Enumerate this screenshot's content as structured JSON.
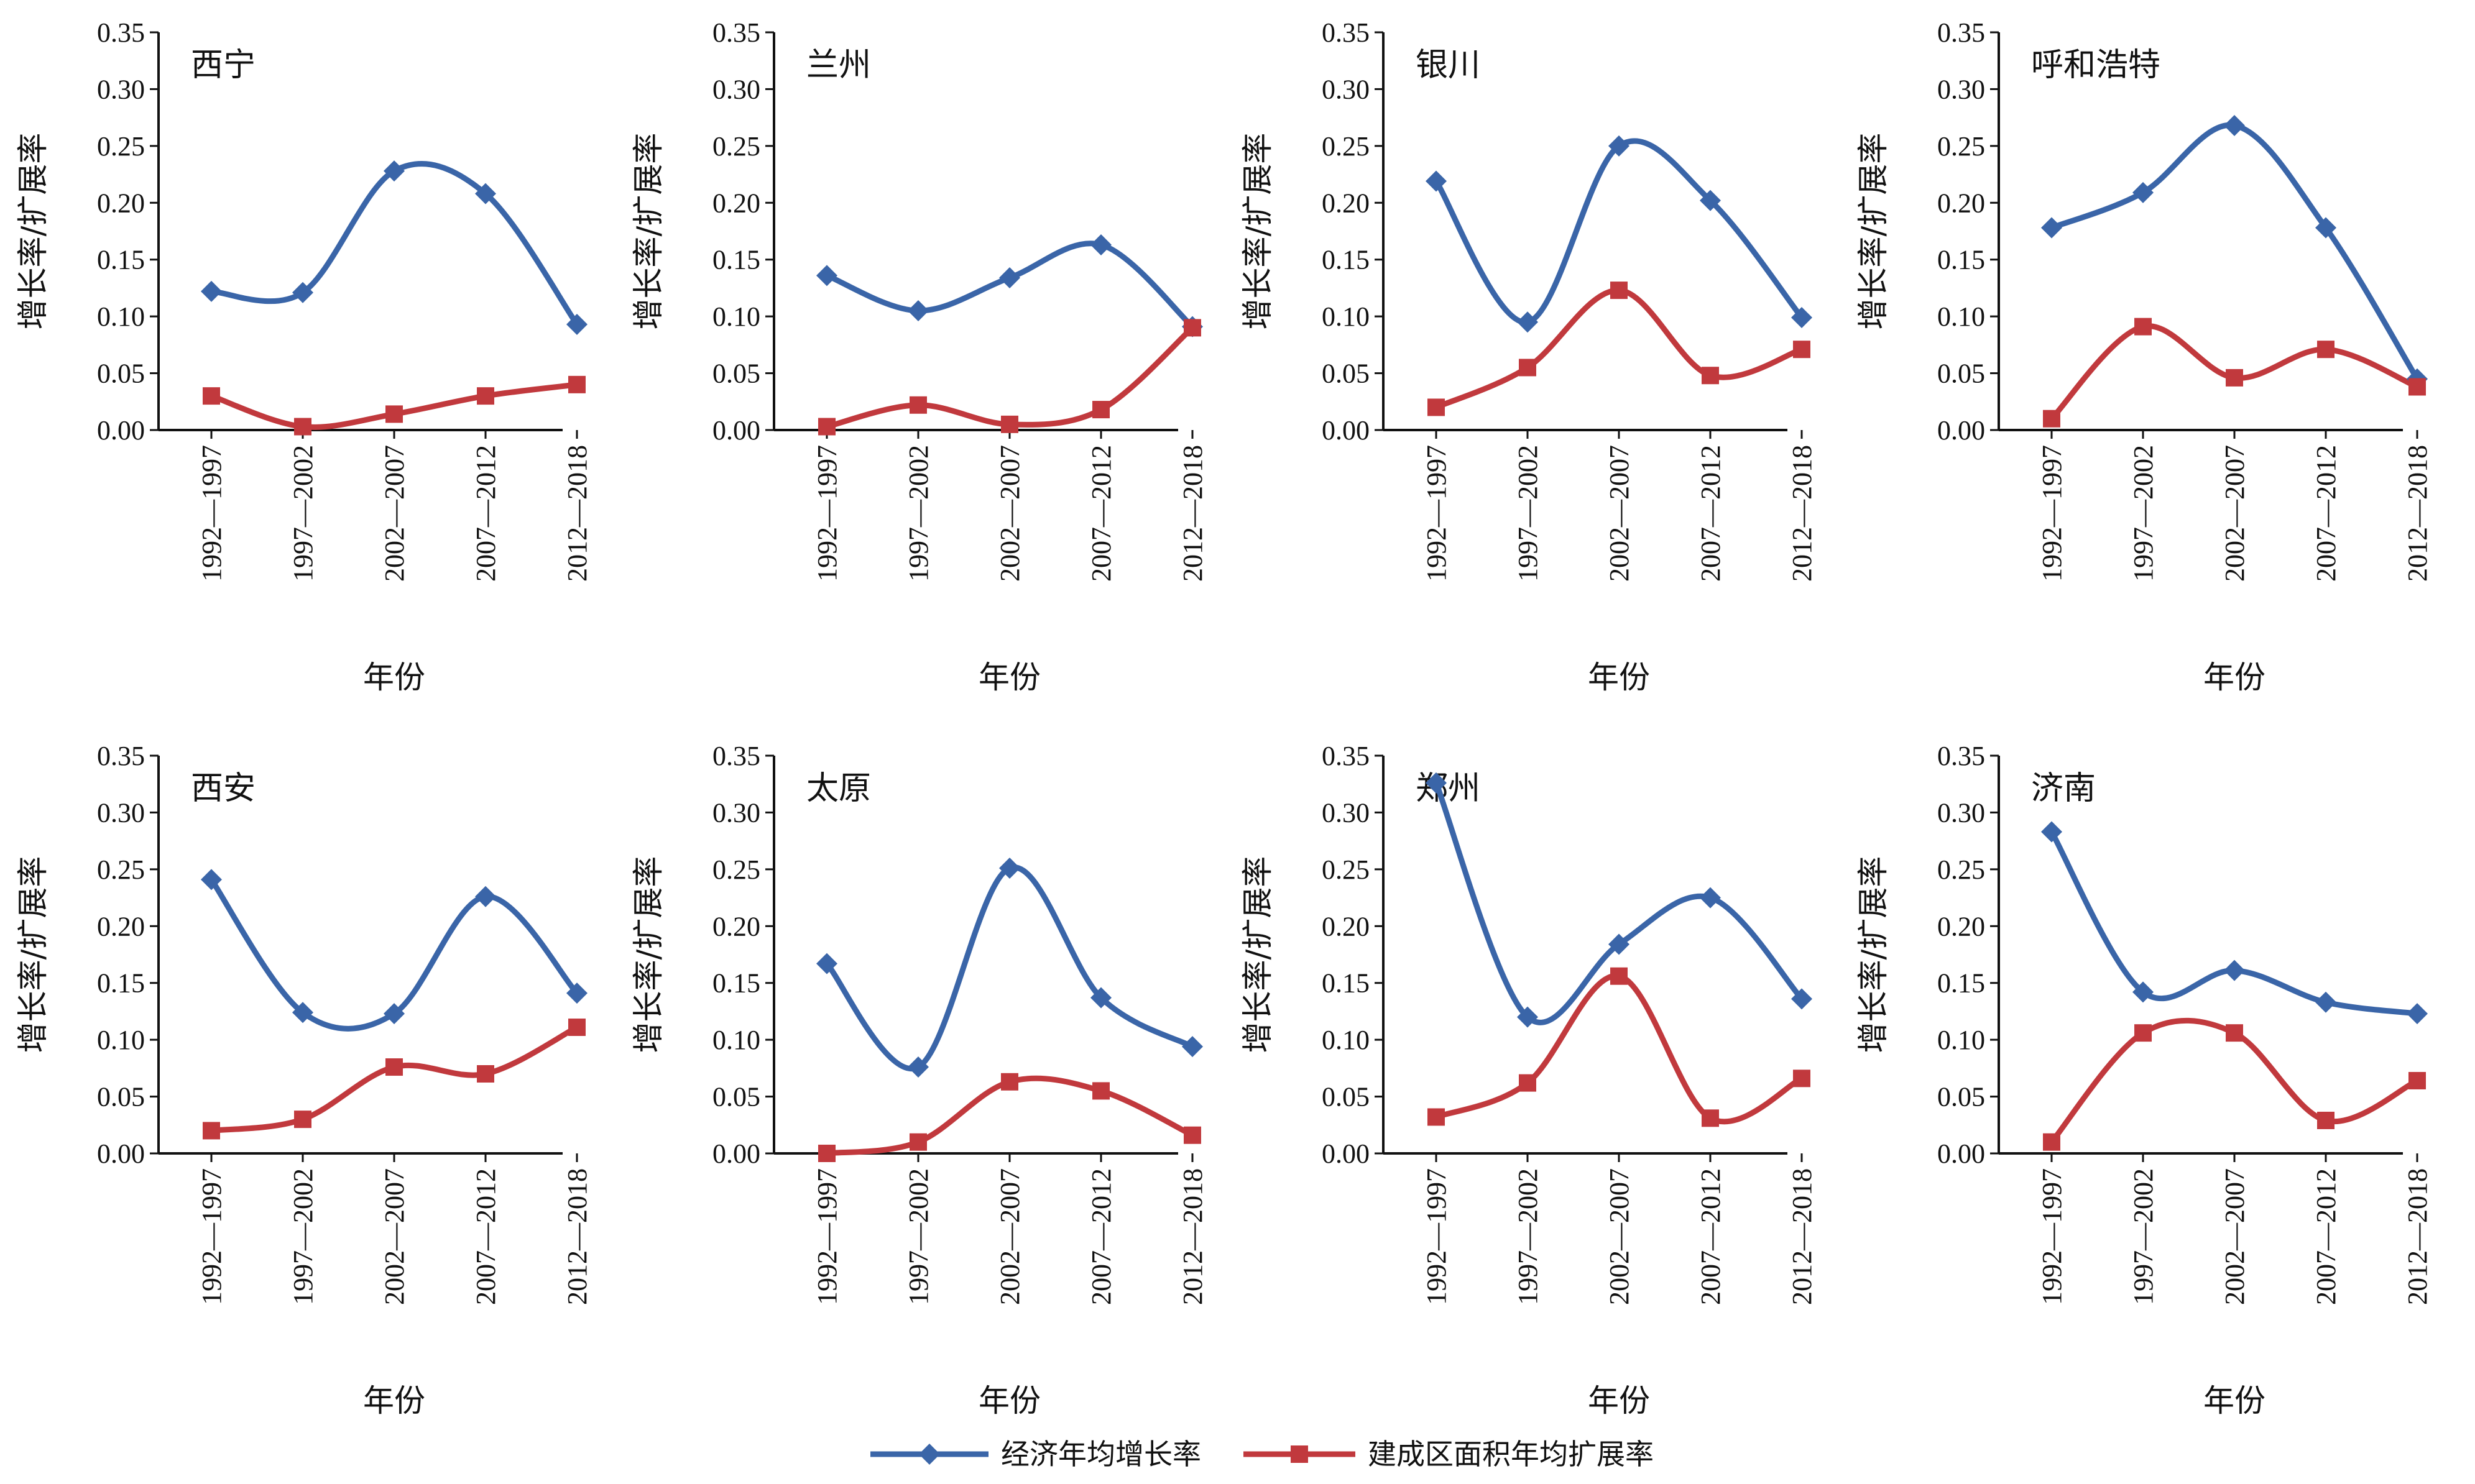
{
  "chart_data": {
    "type": "line",
    "categories": [
      "1992—1997",
      "1997—2002",
      "2002—2007",
      "2007—2012",
      "2012—2018"
    ],
    "xlabel": "年份",
    "ylabel": "增长率/扩展率",
    "ylim": [
      0,
      0.35
    ],
    "yticks": [
      "0.00",
      "0.05",
      "0.10",
      "0.15",
      "0.20",
      "0.25",
      "0.30",
      "0.35"
    ],
    "grid": false,
    "legend_position": "bottom-center",
    "series_meta": [
      {
        "name": "经济年均增长率",
        "color": "#3a65a8",
        "marker": "diamond"
      },
      {
        "name": "建成区面积年均扩展率",
        "color": "#c1393d",
        "marker": "square"
      }
    ],
    "panels": [
      {
        "title": "西宁",
        "economic": [
          0.122,
          0.121,
          0.228,
          0.208,
          0.093
        ],
        "expansion": [
          0.03,
          0.003,
          0.014,
          0.03,
          0.04
        ]
      },
      {
        "title": "兰州",
        "economic": [
          0.136,
          0.105,
          0.134,
          0.163,
          0.091
        ],
        "expansion": [
          0.003,
          0.022,
          0.005,
          0.018,
          0.09
        ]
      },
      {
        "title": "银川",
        "economic": [
          0.219,
          0.095,
          0.25,
          0.202,
          0.099
        ],
        "expansion": [
          0.02,
          0.055,
          0.123,
          0.048,
          0.071
        ]
      },
      {
        "title": "呼和浩特",
        "economic": [
          0.178,
          0.209,
          0.268,
          0.178,
          0.045
        ],
        "expansion": [
          0.01,
          0.091,
          0.046,
          0.071,
          0.038
        ]
      },
      {
        "title": "西安",
        "economic": [
          0.241,
          0.124,
          0.123,
          0.226,
          0.141
        ],
        "expansion": [
          0.02,
          0.03,
          0.076,
          0.07,
          0.111
        ]
      },
      {
        "title": "太原",
        "economic": [
          0.167,
          0.076,
          0.251,
          0.137,
          0.094
        ],
        "expansion": [
          0.0,
          0.01,
          0.063,
          0.055,
          0.016
        ]
      },
      {
        "title": "郑州",
        "economic": [
          0.326,
          0.12,
          0.184,
          0.225,
          0.136
        ],
        "expansion": [
          0.032,
          0.062,
          0.156,
          0.031,
          0.066
        ]
      },
      {
        "title": "济南",
        "economic": [
          0.283,
          0.142,
          0.161,
          0.133,
          0.123
        ],
        "expansion": [
          0.01,
          0.106,
          0.106,
          0.029,
          0.064
        ]
      }
    ]
  }
}
